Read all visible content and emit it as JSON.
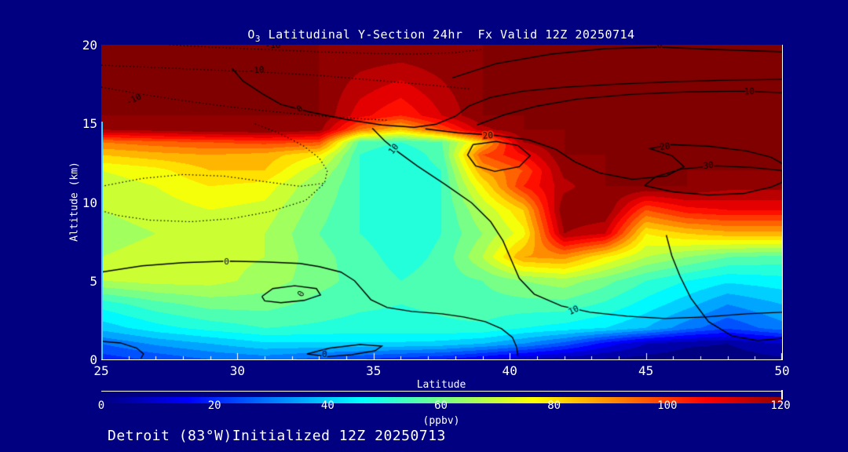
{
  "colors": {
    "background": "#000080",
    "text": "#ffffff",
    "contour_line": "#000000",
    "axis": "#ffffff",
    "left_edge_strip": "#45cdf5"
  },
  "annotations": {
    "footer": "Detroit (83°W)Initialized 12Z 20250713"
  },
  "chart_data": {
    "type": "heatmap",
    "title": {
      "species": "O",
      "species_sub": "3",
      "text": " Latitudinal Y-Section 24hr  Fx Valid 12Z 20250714"
    },
    "x_axis": {
      "label": "Latitude",
      "min": 25,
      "max": 50,
      "major_ticks": [
        25,
        30,
        35,
        40,
        45,
        50
      ],
      "minor_tick_step": 1
    },
    "y_axis": {
      "label": "Altitude (km)",
      "min": 0,
      "max": 20,
      "major_ticks": [
        0,
        5,
        10,
        15,
        20
      ]
    },
    "colorbar": {
      "label": "(ppbv)",
      "min": 0,
      "max": 120,
      "ticks": [
        0,
        20,
        40,
        60,
        80,
        100,
        120
      ],
      "colormap": "jet",
      "saturate_at": 122,
      "band_step": 5
    },
    "fill_grid": {
      "units": "ppbv",
      "lats": [
        25,
        27,
        29,
        31,
        33,
        34.5,
        36,
        37.5,
        39,
        40.5,
        42,
        43.5,
        45,
        46.5,
        48,
        50
      ],
      "alts": [
        0,
        1,
        2,
        3.5,
        5,
        6.5,
        8,
        9.5,
        11,
        12,
        13,
        13.8,
        14.6,
        15.5,
        20
      ],
      "values_ppbv": [
        [
          22,
          26,
          30,
          32,
          28,
          25,
          22,
          20,
          15,
          10,
          6,
          4,
          3,
          2,
          2,
          4
        ],
        [
          30,
          36,
          40,
          44,
          44,
          44,
          44,
          43,
          40,
          35,
          28,
          18,
          10,
          6,
          5,
          10
        ],
        [
          42,
          48,
          52,
          55,
          54,
          53,
          53,
          54,
          54,
          50,
          48,
          45,
          40,
          32,
          26,
          33
        ],
        [
          52,
          58,
          62,
          62,
          58,
          56,
          55,
          56,
          58,
          58,
          58,
          54,
          48,
          42,
          35,
          40
        ],
        [
          70,
          72,
          72,
          68,
          62,
          58,
          55,
          57,
          60,
          65,
          68,
          62,
          55,
          50,
          46,
          48
        ],
        [
          70,
          72,
          72,
          70,
          62,
          57,
          53,
          56,
          70,
          90,
          92,
          80,
          70,
          65,
          60,
          58
        ],
        [
          68,
          70,
          72,
          70,
          60,
          55,
          52,
          55,
          65,
          78,
          120,
          115,
          80,
          85,
          88,
          88
        ],
        [
          70,
          72,
          75,
          73,
          62,
          55,
          52,
          55,
          70,
          85,
          125,
          125,
          100,
          108,
          110,
          110
        ],
        [
          72,
          75,
          80,
          78,
          65,
          55,
          52,
          55,
          80,
          105,
          118,
          125,
          125,
          125,
          122,
          122
        ],
        [
          75,
          78,
          85,
          85,
          70,
          55,
          50,
          55,
          90,
          100,
          122,
          125,
          125,
          125,
          125,
          125
        ],
        [
          85,
          88,
          90,
          88,
          80,
          55,
          50,
          58,
          100,
          110,
          125,
          125,
          125,
          125,
          125,
          125
        ],
        [
          95,
          98,
          100,
          102,
          100,
          58,
          55,
          60,
          85,
          120,
          125,
          125,
          125,
          125,
          125,
          125
        ],
        [
          120,
          122,
          124,
          125,
          122,
          95,
          85,
          100,
          118,
          125,
          125,
          125,
          125,
          125,
          125,
          125
        ],
        [
          125,
          125,
          125,
          125,
          125,
          112,
          105,
          115,
          125,
          125,
          125,
          125,
          125,
          125,
          125,
          125
        ],
        [
          125,
          125,
          125,
          125,
          125,
          125,
          125,
          125,
          125,
          125,
          125,
          125,
          125,
          125,
          125,
          125
        ]
      ]
    },
    "overlay_contours": [
      {
        "value": -10,
        "style": "dotted",
        "points": [
          [
            25,
            17.3
          ],
          [
            26.5,
            16.85
          ],
          [
            28,
            16.45
          ],
          [
            29.5,
            16.1
          ],
          [
            31,
            15.8
          ],
          [
            32.5,
            15.55
          ],
          [
            34,
            15.35
          ],
          [
            35.5,
            15.2
          ]
        ]
      },
      {
        "value": -10,
        "style": "dotted",
        "points": [
          [
            25,
            18.7
          ],
          [
            27,
            18.55
          ],
          [
            29,
            18.4
          ],
          [
            31,
            18.25
          ],
          [
            33,
            18.05
          ],
          [
            35,
            17.75
          ],
          [
            37,
            17.45
          ],
          [
            38.5,
            17.2
          ]
        ]
      },
      {
        "value": -10,
        "style": "dotted",
        "points": [
          [
            27.5,
            20
          ],
          [
            29,
            19.85
          ],
          [
            31,
            19.7
          ],
          [
            33,
            19.55
          ],
          [
            35,
            19.45
          ],
          [
            36.5,
            19.4
          ],
          [
            38,
            19.5
          ],
          [
            39,
            19.7
          ]
        ]
      },
      {
        "value": -10,
        "style": "dotted",
        "points": [
          [
            25,
            11.0
          ],
          [
            26.5,
            11.5
          ],
          [
            28,
            11.75
          ],
          [
            29.5,
            11.65
          ],
          [
            31,
            11.3
          ],
          [
            32.3,
            11.0
          ],
          [
            33.2,
            11.2
          ],
          [
            33.3,
            12.0
          ],
          [
            33.0,
            12.8
          ],
          [
            32.4,
            13.6
          ],
          [
            31.5,
            14.4
          ],
          [
            30.6,
            15.0
          ]
        ]
      },
      {
        "value": -10,
        "style": "dotted",
        "points": [
          [
            25,
            9.45
          ],
          [
            25.6,
            9.15
          ],
          [
            26.8,
            8.85
          ],
          [
            28.3,
            8.75
          ],
          [
            29.8,
            8.95
          ],
          [
            31.2,
            9.4
          ],
          [
            32.5,
            10.1
          ],
          [
            33.2,
            11.2
          ]
        ]
      },
      {
        "value": 0,
        "style": "solid",
        "points": [
          [
            37.9,
            17.9
          ],
          [
            39.5,
            18.8
          ],
          [
            41.5,
            19.4
          ],
          [
            43.5,
            19.75
          ],
          [
            45.5,
            19.85
          ],
          [
            47.5,
            19.7
          ],
          [
            50,
            19.55
          ]
        ]
      },
      {
        "value": 0,
        "style": "solid",
        "points": [
          [
            29.8,
            18.5
          ],
          [
            30.2,
            17.7
          ],
          [
            30.9,
            16.9
          ],
          [
            31.6,
            16.2
          ],
          [
            32.6,
            15.75
          ],
          [
            34,
            15.25
          ],
          [
            35.3,
            14.9
          ],
          [
            36.5,
            14.75
          ],
          [
            37.3,
            14.95
          ],
          [
            38,
            15.45
          ],
          [
            38.5,
            16.1
          ],
          [
            39.3,
            16.65
          ],
          [
            40.5,
            17.05
          ],
          [
            42,
            17.3
          ],
          [
            44,
            17.5
          ],
          [
            46,
            17.65
          ],
          [
            48,
            17.75
          ],
          [
            50,
            17.8
          ]
        ]
      },
      {
        "value": 10,
        "style": "solid",
        "points": [
          [
            38.8,
            14.9
          ],
          [
            39.8,
            15.55
          ],
          [
            41,
            16.1
          ],
          [
            42.5,
            16.55
          ],
          [
            44.5,
            16.85
          ],
          [
            46.5,
            17.0
          ],
          [
            48.5,
            17.05
          ],
          [
            50,
            16.95
          ]
        ]
      },
      {
        "value": 10,
        "style": "solid",
        "points": [
          [
            34.95,
            14.7
          ],
          [
            35.4,
            13.9
          ],
          [
            35.85,
            13.25
          ],
          [
            36.6,
            12.3
          ],
          [
            37.6,
            11.15
          ],
          [
            38.6,
            9.95
          ],
          [
            39.3,
            8.75
          ],
          [
            39.75,
            7.55
          ],
          [
            40.05,
            6.35
          ],
          [
            40.35,
            5.15
          ],
          [
            40.9,
            4.15
          ],
          [
            41.9,
            3.4
          ],
          [
            42.95,
            3.0
          ],
          [
            44.3,
            2.75
          ],
          [
            45.7,
            2.6
          ],
          [
            47.2,
            2.7
          ],
          [
            48.7,
            2.9
          ],
          [
            50,
            3.0
          ]
        ]
      },
      {
        "value": 20,
        "style": "solid",
        "points": [
          [
            36.9,
            14.65
          ],
          [
            38.1,
            14.4
          ],
          [
            39.4,
            14.25
          ],
          [
            40.7,
            13.95
          ],
          [
            41.7,
            13.35
          ],
          [
            42.4,
            12.55
          ],
          [
            43.3,
            11.85
          ],
          [
            44.5,
            11.45
          ],
          [
            45.75,
            11.65
          ],
          [
            46.4,
            12.25
          ],
          [
            45.95,
            12.95
          ],
          [
            45.15,
            13.4
          ],
          [
            45.9,
            13.65
          ],
          [
            47.3,
            13.55
          ],
          [
            48.7,
            13.25
          ],
          [
            49.6,
            12.85
          ],
          [
            50,
            12.45
          ]
        ]
      },
      {
        "value": 20,
        "style": "solid",
        "points": [
          [
            38.65,
            13.65
          ],
          [
            39.5,
            13.85
          ],
          [
            40.3,
            13.6
          ],
          [
            40.75,
            12.95
          ],
          [
            40.35,
            12.25
          ],
          [
            39.45,
            11.95
          ],
          [
            38.75,
            12.3
          ],
          [
            38.45,
            13.0
          ],
          [
            38.65,
            13.65
          ]
        ]
      },
      {
        "value": 30,
        "style": "solid",
        "points": [
          [
            44.95,
            11.05
          ],
          [
            46,
            10.65
          ],
          [
            47.3,
            10.45
          ],
          [
            48.6,
            10.55
          ],
          [
            49.6,
            10.95
          ],
          [
            50,
            11.25
          ],
          [
            50,
            12.0
          ],
          [
            48.9,
            12.2
          ],
          [
            47.6,
            12.3
          ],
          [
            46.3,
            12.1
          ],
          [
            45.35,
            11.6
          ],
          [
            44.95,
            11.05
          ]
        ]
      },
      {
        "value": 0,
        "style": "solid",
        "points": [
          [
            25,
            5.55
          ],
          [
            26.5,
            5.95
          ],
          [
            28,
            6.15
          ],
          [
            29.6,
            6.25
          ],
          [
            31,
            6.2
          ],
          [
            32.3,
            6.1
          ],
          [
            33,
            5.9
          ],
          [
            33.8,
            5.55
          ],
          [
            34.3,
            5.0
          ],
          [
            34.6,
            4.4
          ],
          [
            34.9,
            3.8
          ],
          [
            35.5,
            3.3
          ],
          [
            36.4,
            3.05
          ],
          [
            37.5,
            2.9
          ],
          [
            38.3,
            2.7
          ],
          [
            39.1,
            2.4
          ],
          [
            39.7,
            1.95
          ],
          [
            40.1,
            1.4
          ],
          [
            40.25,
            0.8
          ],
          [
            40.3,
            0.2
          ]
        ]
      },
      {
        "value": 0,
        "style": "solid",
        "points": [
          [
            30.9,
            4.0
          ],
          [
            31.3,
            4.5
          ],
          [
            32.1,
            4.68
          ],
          [
            32.9,
            4.5
          ],
          [
            33.05,
            4.1
          ],
          [
            32.45,
            3.75
          ],
          [
            31.6,
            3.6
          ],
          [
            31.0,
            3.72
          ],
          [
            30.9,
            4.0
          ]
        ]
      },
      {
        "value": 10,
        "style": "solid",
        "points": [
          [
            45.75,
            7.9
          ],
          [
            45.95,
            6.6
          ],
          [
            46.25,
            5.3
          ],
          [
            46.65,
            3.9
          ],
          [
            47.3,
            2.4
          ],
          [
            48.15,
            1.5
          ],
          [
            49.1,
            1.2
          ],
          [
            50,
            1.35
          ]
        ]
      },
      {
        "value": 0,
        "style": "solid",
        "points": [
          [
            32.55,
            0.35
          ],
          [
            33.4,
            0.72
          ],
          [
            34.5,
            0.95
          ],
          [
            35.3,
            0.85
          ],
          [
            35.05,
            0.55
          ],
          [
            34.2,
            0.3
          ],
          [
            33.3,
            0.18
          ],
          [
            32.55,
            0.35
          ]
        ]
      },
      {
        "value": 0,
        "style": "solid",
        "points": [
          [
            25,
            1.15
          ],
          [
            25.7,
            1.05
          ],
          [
            26.3,
            0.72
          ],
          [
            26.55,
            0.35
          ],
          [
            26.45,
            0.05
          ]
        ]
      }
    ],
    "contour_labels": [
      {
        "text": "-10",
        "lat": 26.2,
        "alt": 16.5,
        "rot": -28
      },
      {
        "text": "-10",
        "lat": 30.7,
        "alt": 18.35,
        "rot": -5
      },
      {
        "text": "-10",
        "lat": 31.3,
        "alt": 19.95,
        "rot": 0
      },
      {
        "text": "0",
        "lat": 32.3,
        "alt": 15.9,
        "rot": -38
      },
      {
        "text": "0",
        "lat": 45.5,
        "alt": 19.95,
        "rot": 0
      },
      {
        "text": "10",
        "lat": 48.8,
        "alt": 17.0,
        "rot": -3
      },
      {
        "text": "10",
        "lat": 35.75,
        "alt": 13.35,
        "rot": -52
      },
      {
        "text": "20",
        "lat": 39.2,
        "alt": 14.2,
        "rot": -5
      },
      {
        "text": "20",
        "lat": 45.7,
        "alt": 13.5,
        "rot": -8
      },
      {
        "text": "30",
        "lat": 47.3,
        "alt": 12.3,
        "rot": -8
      },
      {
        "text": "0",
        "lat": 29.6,
        "alt": 6.2,
        "rot": 0
      },
      {
        "text": "0",
        "lat": 32.35,
        "alt": 4.15,
        "rot": -60
      },
      {
        "text": "10",
        "lat": 42.35,
        "alt": 3.1,
        "rot": -25
      },
      {
        "text": "0",
        "lat": 33.2,
        "alt": 0.28,
        "rot": 0
      }
    ]
  }
}
